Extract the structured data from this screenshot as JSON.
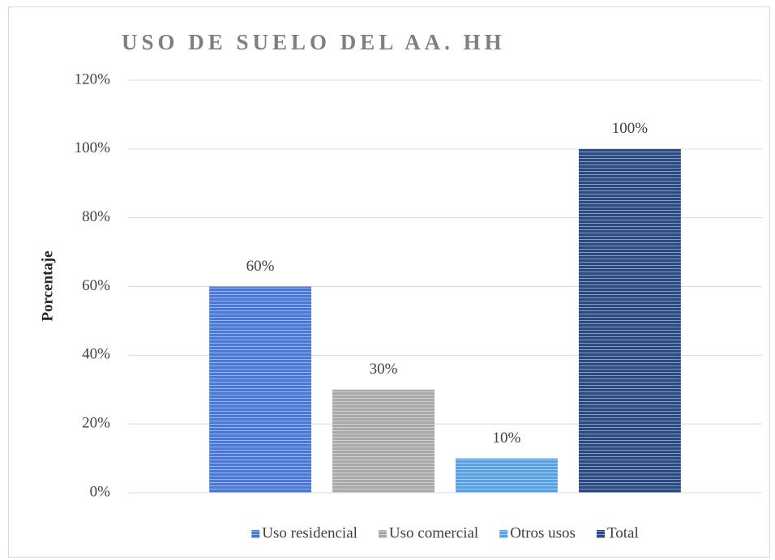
{
  "chart_data": {
    "type": "bar",
    "title": "USO DE SUELO DEL AA. HH",
    "y_label": "Porcentaje",
    "categories": [
      null
    ],
    "series": [
      {
        "name": "Uso residencial",
        "color": "#4f78cc",
        "values": [
          60
        ],
        "value_labels": [
          "60%"
        ]
      },
      {
        "name": "Uso comercial",
        "color": "#a9a9a9",
        "values": [
          30
        ],
        "value_labels": [
          "30%"
        ]
      },
      {
        "name": "Otros usos",
        "color": "#5fa0dc",
        "values": [
          10
        ],
        "value_labels": [
          "10%"
        ]
      },
      {
        "name": "Total",
        "color": "#2e4a7d",
        "values": [
          100
        ],
        "value_labels": [
          "100%"
        ]
      }
    ],
    "ylim": [
      0,
      120
    ],
    "yticks": [
      {
        "value": 0,
        "label": "0%"
      },
      {
        "value": 20,
        "label": "20%"
      },
      {
        "value": 40,
        "label": "40%"
      },
      {
        "value": 60,
        "label": "60%"
      },
      {
        "value": 80,
        "label": "80%"
      },
      {
        "value": 100,
        "label": "100%"
      },
      {
        "value": 120,
        "label": "120%"
      }
    ],
    "grid": true,
    "legend": "bottom"
  }
}
